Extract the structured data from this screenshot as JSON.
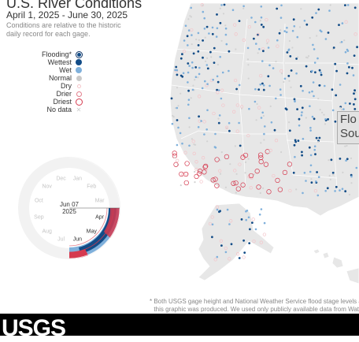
{
  "header": {
    "title": "U.S. River Conditions",
    "date_range": "April 1, 2025 - June 30, 2025",
    "description": "Conditions are relative to the historic daily record for each gage."
  },
  "legend": [
    {
      "label": "Flooding*",
      "symbol": "flood-ring-dot",
      "color": "#0a2f61"
    },
    {
      "label": "Wettest",
      "symbol": "dot",
      "color": "#124c87"
    },
    {
      "label": "Wet",
      "symbol": "dot",
      "color": "#7fb0db"
    },
    {
      "label": "Normal",
      "symbol": "dot",
      "color": "#c9c9c9"
    },
    {
      "label": "Dry",
      "symbol": "ring",
      "color": "#f4c4c9"
    },
    {
      "label": "Drier",
      "symbol": "ring",
      "color": "#e37e8c"
    },
    {
      "label": "Driest",
      "symbol": "ring",
      "color": "#d53a4f"
    },
    {
      "label": "No data",
      "symbol": "x",
      "color": "#c9c9c9"
    }
  ],
  "timeline": {
    "current_date": "Jun 07",
    "current_year": "2025",
    "months": [
      "Jan",
      "Feb",
      "Mar",
      "Apr",
      "May",
      "Jun",
      "Jul",
      "Aug",
      "Sep",
      "Oct",
      "Nov",
      "Dec"
    ],
    "active_months": [
      "Apr",
      "May",
      "Jun"
    ]
  },
  "tooltip": {
    "line1": "Flo",
    "line2": "Sout"
  },
  "footnote": {
    "line1": "* Both USGS gage height and National Weather Service flood stage levels a",
    "line2": "this graphic was produced. We used only publicly available data from Wat"
  },
  "footer": {
    "logo_text": "USGS"
  },
  "colors": {
    "land": "#e7e7e7",
    "flood": "#0a2f61",
    "wettest": "#124c87",
    "wet": "#7fb0db",
    "dry": "#f4c4c9",
    "driest": "#d53a4f"
  }
}
